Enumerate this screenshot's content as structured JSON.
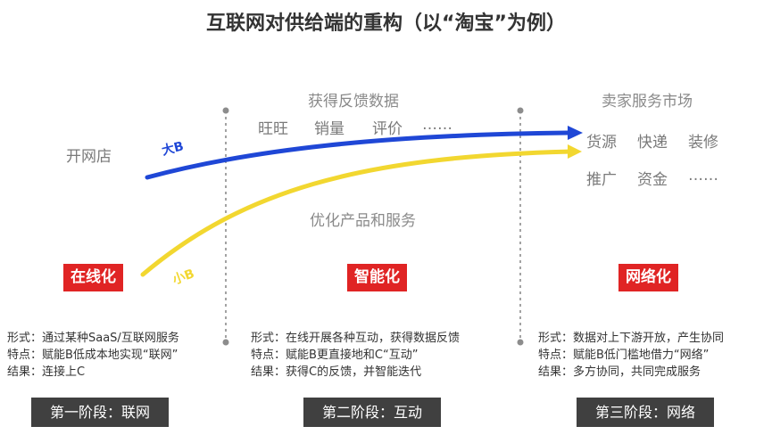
{
  "title": "互联网对供给端的重构（以“淘宝”为例）",
  "left_label": "开网店",
  "feedback_heading": "获得反馈数据",
  "feedback_items": [
    "旺旺",
    "销量",
    "评价",
    "……"
  ],
  "optimize_label": "优化产品和服务",
  "market_heading": "卖家服务市场",
  "market_row1": [
    "货源",
    "快递",
    "装修"
  ],
  "market_row2": [
    "推广",
    "资金",
    "……"
  ],
  "arrow_big_label": "大B",
  "arrow_small_label": "小B",
  "colors": {
    "big_b": "#1f47d6",
    "small_b": "#f2d730",
    "badge": "#e02424",
    "stage": "#404040"
  },
  "phases": [
    {
      "badge": "在线化",
      "lines": [
        "形式：通过某种SaaS/互联网服务",
        "特点：赋能B低成本地实现“联网”",
        "结果：连接上C"
      ],
      "stage": "第一阶段：联网"
    },
    {
      "badge": "智能化",
      "lines": [
        "形式：在线开展各种互动，获得数据反馈",
        "特点：赋能B更直接地和C“互动”",
        "结果：获得C的反馈，并智能迭代"
      ],
      "stage": "第二阶段：互动"
    },
    {
      "badge": "网络化",
      "lines": [
        "形式：数据对上下游开放，产生协同",
        "特点：赋能B低门槛地借力“网络”",
        "结果：多方协同，共同完成服务"
      ],
      "stage": "第三阶段：网络"
    }
  ]
}
